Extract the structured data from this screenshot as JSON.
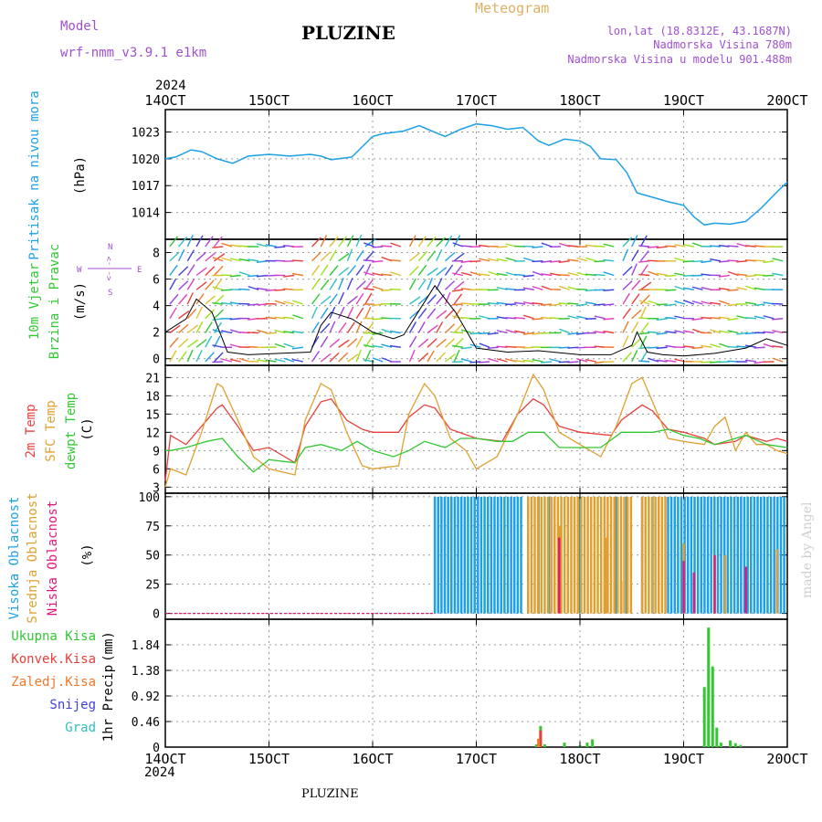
{
  "header": {
    "model_label": "Model",
    "model_value": "wrf-nmm_v3.9.1 e1km",
    "title": "PLUZINE",
    "meteogram_label": "Meteogram",
    "lonlat": "lon,lat (18.8312E, 43.1687N)",
    "altitude": "Nadmorska Visina 780m",
    "model_altitude": "Nadmorska Visina u modelu 901.488m",
    "top_year": "2024",
    "bottom_year": "2024",
    "footer": "PLUZINE",
    "credit": "made by Angel"
  },
  "colors": {
    "pressure": "#1ea0e6",
    "temp2m": "#e8403c",
    "sfc": "#e0a030",
    "dewpt": "#32c832",
    "high_cloud": "#1ea0e6",
    "mid_cloud": "#e0a030",
    "low_cloud": "#e0187a",
    "precip_total": "#32c832",
    "precip_conv": "#e8403c",
    "precip_frz": "#f07828",
    "snow": "#4040e0",
    "hail": "#30c0c0",
    "model_purple": "#a050d0",
    "meteogram_gold": "#e0b060"
  },
  "axes": {
    "x_ticks": [
      "14OCT",
      "15OCT",
      "16OCT",
      "17OCT",
      "18OCT",
      "19OCT",
      "20OCT"
    ]
  },
  "chart_data": [
    {
      "type": "line",
      "panel": "pressure",
      "ylabel_main": "Pritisak na nivou mora",
      "ylabel_unit": "(hPa)",
      "ylim": [
        1011,
        1025.5
      ],
      "y_ticks": [
        1014,
        1017,
        1020,
        1023
      ],
      "x_range_days": [
        0,
        6
      ],
      "grid": true,
      "series": [
        {
          "values": [
            [
              0,
              1020
            ],
            [
              0.1,
              1020.2
            ],
            [
              0.25,
              1021
            ],
            [
              0.35,
              1020.8
            ],
            [
              0.5,
              1020
            ],
            [
              0.65,
              1019.5
            ],
            [
              0.8,
              1020.3
            ],
            [
              1.0,
              1020.5
            ],
            [
              1.2,
              1020.3
            ],
            [
              1.4,
              1020.5
            ],
            [
              1.5,
              1020.3
            ],
            [
              1.6,
              1019.9
            ],
            [
              1.8,
              1020.2
            ],
            [
              2.0,
              1022.5
            ],
            [
              2.1,
              1022.8
            ],
            [
              2.3,
              1023.1
            ],
            [
              2.45,
              1023.7
            ],
            [
              2.55,
              1023.2
            ],
            [
              2.7,
              1022.5
            ],
            [
              2.85,
              1023.3
            ],
            [
              3.0,
              1023.9
            ],
            [
              3.15,
              1023.7
            ],
            [
              3.3,
              1023.3
            ],
            [
              3.45,
              1023.5
            ],
            [
              3.6,
              1022
            ],
            [
              3.7,
              1021.5
            ],
            [
              3.85,
              1022.2
            ],
            [
              4.0,
              1022
            ],
            [
              4.1,
              1021.4
            ],
            [
              4.2,
              1020
            ],
            [
              4.35,
              1019.9
            ],
            [
              4.45,
              1018.5
            ],
            [
              4.55,
              1016.2
            ],
            [
              4.7,
              1015.7
            ],
            [
              4.85,
              1015.2
            ],
            [
              5.0,
              1014.8
            ],
            [
              5.1,
              1013.5
            ],
            [
              5.2,
              1012.6
            ],
            [
              5.3,
              1012.8
            ],
            [
              5.45,
              1012.7
            ],
            [
              5.6,
              1013.0
            ],
            [
              5.75,
              1014.5
            ],
            [
              5.9,
              1016.3
            ],
            [
              6.0,
              1017.4
            ]
          ]
        }
      ]
    },
    {
      "type": "line",
      "panel": "wind",
      "ylabel_main": "10m Vjetar",
      "ylabel_sub": "Brzina i Pravac",
      "ylabel_unit": "(m/s)",
      "compass": "N",
      "compass_w": "W",
      "compass_e": "E",
      "compass_s": "S",
      "ylim": [
        -0.5,
        9
      ],
      "y_ticks": [
        0,
        2,
        4,
        6,
        8
      ],
      "series": [
        {
          "values": [
            [
              0,
              2.0
            ],
            [
              0.2,
              3.0
            ],
            [
              0.3,
              4.5
            ],
            [
              0.45,
              3.5
            ],
            [
              0.6,
              0.5
            ],
            [
              0.8,
              0.3
            ],
            [
              1.1,
              0.4
            ],
            [
              1.4,
              0.5
            ],
            [
              1.5,
              2.5
            ],
            [
              1.6,
              3.5
            ],
            [
              1.8,
              3.0
            ],
            [
              2.0,
              2.0
            ],
            [
              2.2,
              1.5
            ],
            [
              2.3,
              1.8
            ],
            [
              2.6,
              5.5
            ],
            [
              2.8,
              3.5
            ],
            [
              3.0,
              0.8
            ],
            [
              3.3,
              0.5
            ],
            [
              3.6,
              0.6
            ],
            [
              4.0,
              0.3
            ],
            [
              4.3,
              0.3
            ],
            [
              4.5,
              1.0
            ],
            [
              4.55,
              2.0
            ],
            [
              4.65,
              0.5
            ],
            [
              4.8,
              0.3
            ],
            [
              5.0,
              0.2
            ],
            [
              5.3,
              0.4
            ],
            [
              5.6,
              0.8
            ],
            [
              5.8,
              1.5
            ],
            [
              6.0,
              1.0
            ]
          ]
        }
      ]
    },
    {
      "type": "line",
      "panel": "temperature",
      "ylabel_1": "2m Temp",
      "ylabel_2": "SFC Temp",
      "ylabel_3": "dewpt Temp",
      "ylabel_unit": "(C)",
      "ylim": [
        2,
        23
      ],
      "y_ticks": [
        3,
        6,
        9,
        12,
        15,
        18,
        21
      ],
      "series": [
        {
          "key": "temp2m",
          "values": [
            [
              0,
              4
            ],
            [
              0.05,
              11.5
            ],
            [
              0.2,
              10
            ],
            [
              0.35,
              13
            ],
            [
              0.5,
              16
            ],
            [
              0.55,
              16.5
            ],
            [
              0.7,
              13
            ],
            [
              0.85,
              9
            ],
            [
              1.0,
              9.5
            ],
            [
              1.25,
              7
            ],
            [
              1.35,
              13
            ],
            [
              1.5,
              17
            ],
            [
              1.6,
              17.5
            ],
            [
              1.75,
              14
            ],
            [
              1.9,
              12.5
            ],
            [
              2.0,
              12
            ],
            [
              2.25,
              12
            ],
            [
              2.35,
              14.5
            ],
            [
              2.5,
              16.5
            ],
            [
              2.6,
              16
            ],
            [
              2.75,
              12.5
            ],
            [
              3.0,
              11
            ],
            [
              3.25,
              10.5
            ],
            [
              3.4,
              15
            ],
            [
              3.55,
              17.5
            ],
            [
              3.65,
              16.5
            ],
            [
              3.8,
              13
            ],
            [
              4.0,
              12
            ],
            [
              4.3,
              11.5
            ],
            [
              4.4,
              14
            ],
            [
              4.6,
              16.5
            ],
            [
              4.7,
              15.5
            ],
            [
              4.85,
              12.5
            ],
            [
              5.0,
              12
            ],
            [
              5.2,
              11
            ],
            [
              5.3,
              10
            ],
            [
              5.5,
              10.5
            ],
            [
              5.6,
              11.5
            ],
            [
              5.7,
              11
            ],
            [
              5.8,
              10.5
            ],
            [
              5.9,
              11
            ],
            [
              6.0,
              10.5
            ]
          ]
        },
        {
          "key": "sfc",
          "values": [
            [
              0,
              3
            ],
            [
              0.05,
              6
            ],
            [
              0.2,
              5
            ],
            [
              0.35,
              12
            ],
            [
              0.5,
              20
            ],
            [
              0.55,
              19.5
            ],
            [
              0.7,
              14
            ],
            [
              0.85,
              8
            ],
            [
              1.0,
              6
            ],
            [
              1.25,
              5
            ],
            [
              1.35,
              14
            ],
            [
              1.5,
              20
            ],
            [
              1.6,
              19
            ],
            [
              1.75,
              12
            ],
            [
              1.9,
              6.5
            ],
            [
              2.0,
              6
            ],
            [
              2.25,
              6.5
            ],
            [
              2.35,
              15
            ],
            [
              2.5,
              20
            ],
            [
              2.6,
              18
            ],
            [
              2.75,
              11
            ],
            [
              2.9,
              9
            ],
            [
              3.0,
              6
            ],
            [
              3.2,
              8
            ],
            [
              3.4,
              15
            ],
            [
              3.55,
              21.5
            ],
            [
              3.65,
              19
            ],
            [
              3.8,
              12
            ],
            [
              4.0,
              10
            ],
            [
              4.2,
              8
            ],
            [
              4.35,
              13
            ],
            [
              4.5,
              20
            ],
            [
              4.6,
              21
            ],
            [
              4.7,
              17
            ],
            [
              4.85,
              11
            ],
            [
              5.0,
              10.5
            ],
            [
              5.2,
              10
            ],
            [
              5.3,
              13
            ],
            [
              5.4,
              14.5
            ],
            [
              5.5,
              9
            ],
            [
              5.6,
              12
            ],
            [
              5.7,
              10
            ],
            [
              5.8,
              10
            ],
            [
              5.9,
              9
            ],
            [
              6.0,
              8.5
            ]
          ]
        },
        {
          "key": "dewpt",
          "values": [
            [
              0,
              9
            ],
            [
              0.05,
              9
            ],
            [
              0.2,
              9.5
            ],
            [
              0.4,
              10.5
            ],
            [
              0.55,
              11
            ],
            [
              0.7,
              8
            ],
            [
              0.85,
              5.5
            ],
            [
              1.0,
              7.5
            ],
            [
              1.25,
              7
            ],
            [
              1.35,
              9.5
            ],
            [
              1.5,
              10
            ],
            [
              1.7,
              9
            ],
            [
              1.85,
              10.5
            ],
            [
              2.0,
              9
            ],
            [
              2.2,
              8
            ],
            [
              2.35,
              9
            ],
            [
              2.5,
              10.5
            ],
            [
              2.7,
              9.5
            ],
            [
              2.85,
              11
            ],
            [
              3.0,
              11
            ],
            [
              3.2,
              10.5
            ],
            [
              3.35,
              10.5
            ],
            [
              3.5,
              12
            ],
            [
              3.65,
              12
            ],
            [
              3.8,
              9.5
            ],
            [
              4.0,
              9.5
            ],
            [
              4.2,
              9.5
            ],
            [
              4.4,
              12
            ],
            [
              4.55,
              12
            ],
            [
              4.7,
              12
            ],
            [
              4.85,
              12.5
            ],
            [
              5.0,
              11.5
            ],
            [
              5.15,
              11
            ],
            [
              5.3,
              10
            ],
            [
              5.5,
              11
            ],
            [
              5.6,
              11.5
            ],
            [
              5.8,
              10
            ],
            [
              6.0,
              9.5
            ]
          ]
        }
      ]
    },
    {
      "type": "bar",
      "panel": "clouds",
      "ylabel_1": "Visoka Oblacnost",
      "ylabel_2": "Srednja Oblacnost",
      "ylabel_3": "Niska Oblacnost",
      "ylabel_unit": "(%)",
      "ylim": [
        -5,
        103
      ],
      "y_ticks": [
        0,
        25,
        50,
        75,
        100
      ],
      "series": [
        {
          "key": "high_cloud",
          "spans": [
            [
              2.6,
              3.45,
              100
            ],
            [
              4.85,
              6.0,
              100
            ]
          ],
          "sparse": [
            [
              3.5,
              100
            ],
            [
              3.6,
              100
            ],
            [
              3.7,
              100
            ],
            [
              4.0,
              100
            ],
            [
              4.35,
              100
            ],
            [
              4.45,
              100
            ],
            [
              4.6,
              100
            ],
            [
              4.7,
              100
            ]
          ]
        },
        {
          "key": "mid_cloud",
          "spans": [
            [
              3.5,
              4.5,
              100
            ],
            [
              4.6,
              4.85,
              100
            ]
          ],
          "sparse": [
            [
              3.8,
              75
            ],
            [
              4.25,
              65
            ],
            [
              4.4,
              28
            ],
            [
              5.0,
              60
            ],
            [
              5.4,
              50
            ],
            [
              5.9,
              55
            ]
          ]
        },
        {
          "key": "low_cloud",
          "sparse": [
            [
              3.8,
              65
            ],
            [
              5.0,
              45
            ],
            [
              5.1,
              35
            ],
            [
              5.3,
              50
            ],
            [
              5.6,
              40
            ]
          ]
        }
      ]
    },
    {
      "type": "bar",
      "panel": "precip",
      "labels": [
        "Ukupna Kisa",
        "Konvek.Kisa",
        "Zaledj.Kisa",
        "Snijeg",
        "Grad"
      ],
      "ylabel_main": "1hr Precip",
      "ylabel_unit": "(mm)",
      "ylim": [
        0,
        2.3
      ],
      "y_ticks": [
        0,
        0.46,
        0.92,
        1.38,
        1.84
      ],
      "series": [
        {
          "key": "precip_total",
          "values": [
            [
              3.58,
              0.05
            ],
            [
              3.62,
              0.38
            ],
            [
              3.66,
              0.05
            ],
            [
              3.85,
              0.08
            ],
            [
              4.0,
              0.03
            ],
            [
              4.07,
              0.08
            ],
            [
              4.12,
              0.14
            ],
            [
              5.2,
              1.08
            ],
            [
              5.24,
              2.15
            ],
            [
              5.28,
              1.45
            ],
            [
              5.32,
              0.35
            ],
            [
              5.36,
              0.08
            ],
            [
              5.45,
              0.12
            ],
            [
              5.5,
              0.07
            ],
            [
              5.55,
              0.04
            ]
          ]
        },
        {
          "key": "precip_conv",
          "values": [
            [
              3.62,
              0.3
            ]
          ]
        },
        {
          "key": "precip_frz",
          "values": [
            [
              3.6,
              0.15
            ]
          ]
        }
      ]
    }
  ]
}
